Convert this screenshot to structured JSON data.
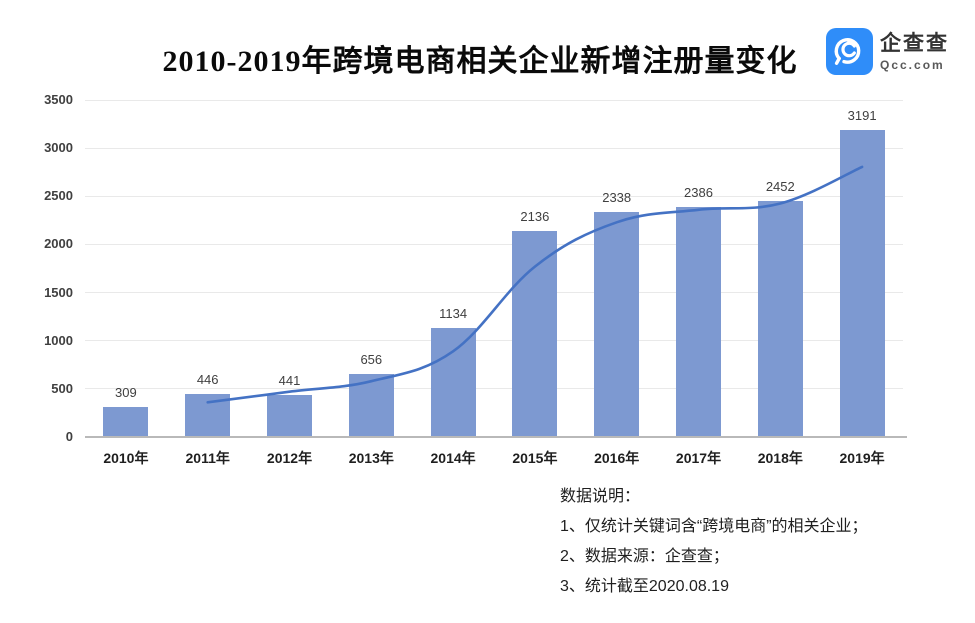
{
  "title": "2010-2019年跨境电商相关企业新增注册量变化",
  "logo": {
    "name": "企查查",
    "domain": "Qcc.com",
    "icon": "qcc-magnifier-icon",
    "brand_color": "#2f8df9"
  },
  "chart_data": {
    "type": "bar",
    "title": "2010-2019年跨境电商相关企业新增注册量变化",
    "categories": [
      "2010年",
      "2011年",
      "2012年",
      "2013年",
      "2014年",
      "2015年",
      "2016年",
      "2017年",
      "2018年",
      "2019年"
    ],
    "series": [
      {
        "name": "新增注册量",
        "type": "bar",
        "color": "#7d99d1",
        "values": [
          309,
          446,
          441,
          656,
          1134,
          2136,
          2338,
          2386,
          2452,
          3191
        ]
      },
      {
        "name": "趋势线",
        "type": "line",
        "color": "#4472c4",
        "values": [
          null,
          360,
          470,
          580,
          890,
          1770,
          2230,
          2360,
          2425,
          2805
        ]
      }
    ],
    "data_labels": [
      "309",
      "446",
      "441",
      "656",
      "1134",
      "2136",
      "2338",
      "2386",
      "2452",
      "3191"
    ],
    "xlabel": "",
    "ylabel": "",
    "ylim": [
      0,
      3500
    ],
    "yticks": [
      0,
      500,
      1000,
      1500,
      2000,
      2500,
      3000,
      3500
    ],
    "grid": true,
    "legend_position": "none"
  },
  "notes": {
    "heading": "数据说明：",
    "items": [
      "1、仅统计关键词含“跨境电商”的相关企业；",
      "2、数据来源：企查查；",
      "3、统计截至2020.08.19"
    ]
  },
  "colors": {
    "bar": "#7d99d1",
    "line": "#4472c4",
    "grid": "#e9e9e9",
    "axis": "#b9b9b9",
    "tick_text": "#404040",
    "brand_blue": "#2f8df9"
  }
}
